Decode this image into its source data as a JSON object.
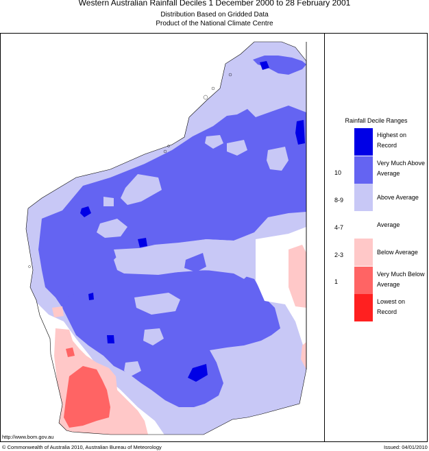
{
  "header": {
    "title": "Western Australian Rainfall Deciles     1 December 2000 to 28 February 2001",
    "subtitle1": "Distribution Based on Gridded Data",
    "subtitle2": "Product of the National Climate Centre"
  },
  "legend": {
    "title": "Rainfall Decile Ranges",
    "items": [
      {
        "label": "Highest on Record",
        "range": "",
        "color": "#0000e6"
      },
      {
        "label": "Very Much Above Average",
        "range": "10",
        "color": "#6464f2"
      },
      {
        "label": "Above Average",
        "range": "8-9",
        "color": "#c8c8f6"
      },
      {
        "label": "Average",
        "range": "4-7",
        "color": "#ffffff"
      },
      {
        "label": "Below Average",
        "range": "2-3",
        "color": "#ffc8c8"
      },
      {
        "label": "Very Much Below Average",
        "range": "1",
        "color": "#ff6464"
      },
      {
        "label": "Lowest on Record",
        "range": "",
        "color": "#ff2020"
      }
    ]
  },
  "footer": {
    "url": "http://www.bom.gov.au",
    "copyright": "© Commonwealth of Australia 2010, Australian Bureau of Meteorology",
    "issued": "Issued: 04/01/2010"
  }
}
